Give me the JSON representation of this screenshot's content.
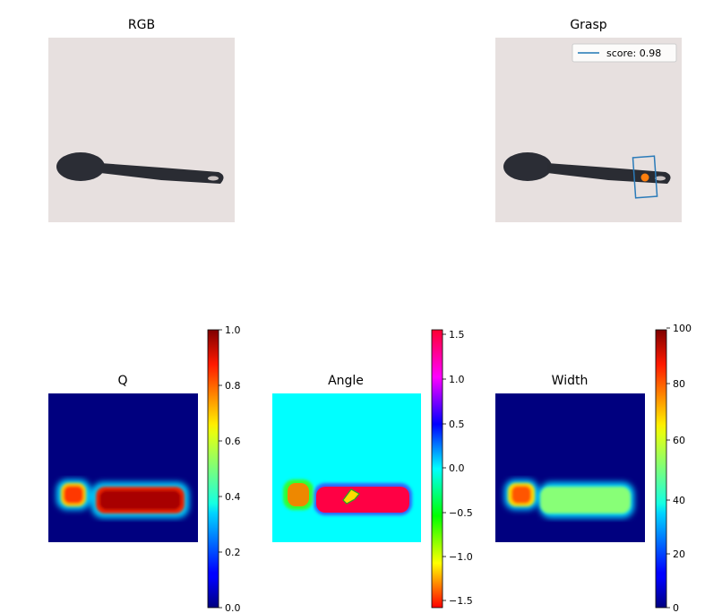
{
  "panels": {
    "rgb": {
      "title": "RGB"
    },
    "grasp": {
      "title": "Grasp",
      "legend_label": "score: 0.98"
    },
    "q": {
      "title": "Q",
      "colorbar_ticks": [
        "0.0",
        "0.2",
        "0.4",
        "0.6",
        "0.8",
        "1.0"
      ]
    },
    "angle": {
      "title": "Angle",
      "colorbar_ticks": [
        "−1.5",
        "−1.0",
        "−0.5",
        "0.0",
        "0.5",
        "1.0",
        "1.5"
      ]
    },
    "width": {
      "title": "Width",
      "colorbar_ticks": [
        "0",
        "20",
        "40",
        "60",
        "80",
        "100"
      ]
    }
  },
  "colors": {
    "legend_line": "#1f77b4",
    "grasp_box": "#2b7bb9",
    "grasp_point": "#ff7f0e",
    "map_background_q": "#00007f",
    "map_background_angle": "#00ffff",
    "map_background_width": "#00007f"
  }
}
